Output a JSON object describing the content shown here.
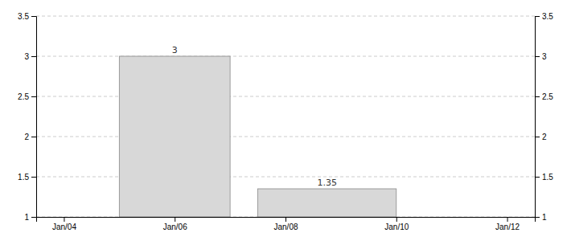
{
  "chart_data": {
    "type": "bar",
    "x": [
      2006,
      2008.75
    ],
    "widths": [
      2,
      2.5
    ],
    "values": [
      3,
      1.35
    ],
    "color": "#d8d8d8",
    "xlim": [
      2003.5,
      2012.5
    ],
    "xticks": [
      {
        "value": 2004,
        "label": "Jan/04"
      },
      {
        "value": 2006,
        "label": "Jan/06"
      },
      {
        "value": 2008,
        "label": "Jan/08"
      },
      {
        "value": 2010,
        "label": "Jan/10"
      },
      {
        "value": 2012,
        "label": "Jan/12"
      }
    ],
    "ylim": [
      1,
      3.5
    ],
    "yticks": [
      1,
      1.5,
      2,
      2.5,
      3,
      3.5
    ],
    "y2lim": [
      1,
      3.5
    ],
    "y2ticks": [
      1,
      1.5,
      2,
      2.5,
      3,
      3.5
    ],
    "grid": true,
    "data_labels": true
  }
}
